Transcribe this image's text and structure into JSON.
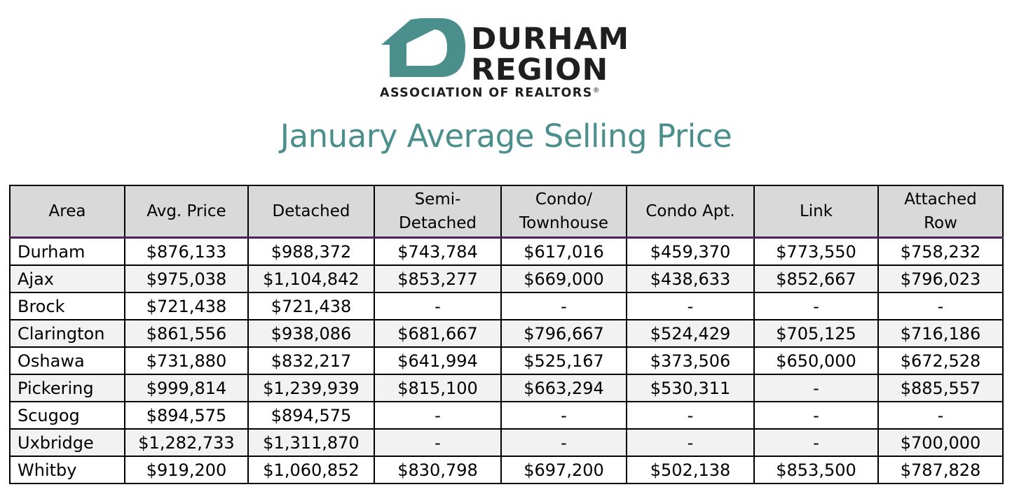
{
  "logo": {
    "line1": "DURHAM",
    "line2": "REGION",
    "subtitle": "ASSOCIATION OF REALTORS",
    "registered": "®",
    "mark_color": "#4a8f8c"
  },
  "title": "January Average Selling Price",
  "title_color": "#4a8f8c",
  "table": {
    "header_bg": "#d9d9d9",
    "headers": [
      {
        "l1": "Area",
        "l2": ""
      },
      {
        "l1": "Avg. Price",
        "l2": ""
      },
      {
        "l1": "Detached",
        "l2": ""
      },
      {
        "l1": "Semi-",
        "l2": "Detached"
      },
      {
        "l1": "Condo/",
        "l2": "Townhouse"
      },
      {
        "l1": "Condo Apt.",
        "l2": ""
      },
      {
        "l1": "Link",
        "l2": ""
      },
      {
        "l1": "Attached",
        "l2": "Row"
      }
    ],
    "rows": [
      [
        "Durham",
        "$876,133",
        "$988,372",
        "$743,784",
        "$617,016",
        "$459,370",
        "$773,550",
        "$758,232"
      ],
      [
        "Ajax",
        "$975,038",
        "$1,104,842",
        "$853,277",
        "$669,000",
        "$438,633",
        "$852,667",
        "$796,023"
      ],
      [
        "Brock",
        "$721,438",
        "$721,438",
        "-",
        "-",
        "-",
        "-",
        "-"
      ],
      [
        "Clarington",
        "$861,556",
        "$938,086",
        "$681,667",
        "$796,667",
        "$524,429",
        "$705,125",
        "$716,186"
      ],
      [
        "Oshawa",
        "$731,880",
        "$832,217",
        "$641,994",
        "$525,167",
        "$373,506",
        "$650,000",
        "$672,528"
      ],
      [
        "Pickering",
        "$999,814",
        "$1,239,939",
        "$815,100",
        "$663,294",
        "$530,311",
        "-",
        "$885,557"
      ],
      [
        "Scugog",
        "$894,575",
        "$894,575",
        "-",
        "-",
        "-",
        "-",
        "-"
      ],
      [
        "Uxbridge",
        "$1,282,733",
        "$1,311,870",
        "-",
        "-",
        "-",
        "-",
        "$700,000"
      ],
      [
        "Whitby",
        "$919,200",
        "$1,060,852",
        "$830,798",
        "$697,200",
        "$502,138",
        "$853,500",
        "$787,828"
      ]
    ]
  }
}
